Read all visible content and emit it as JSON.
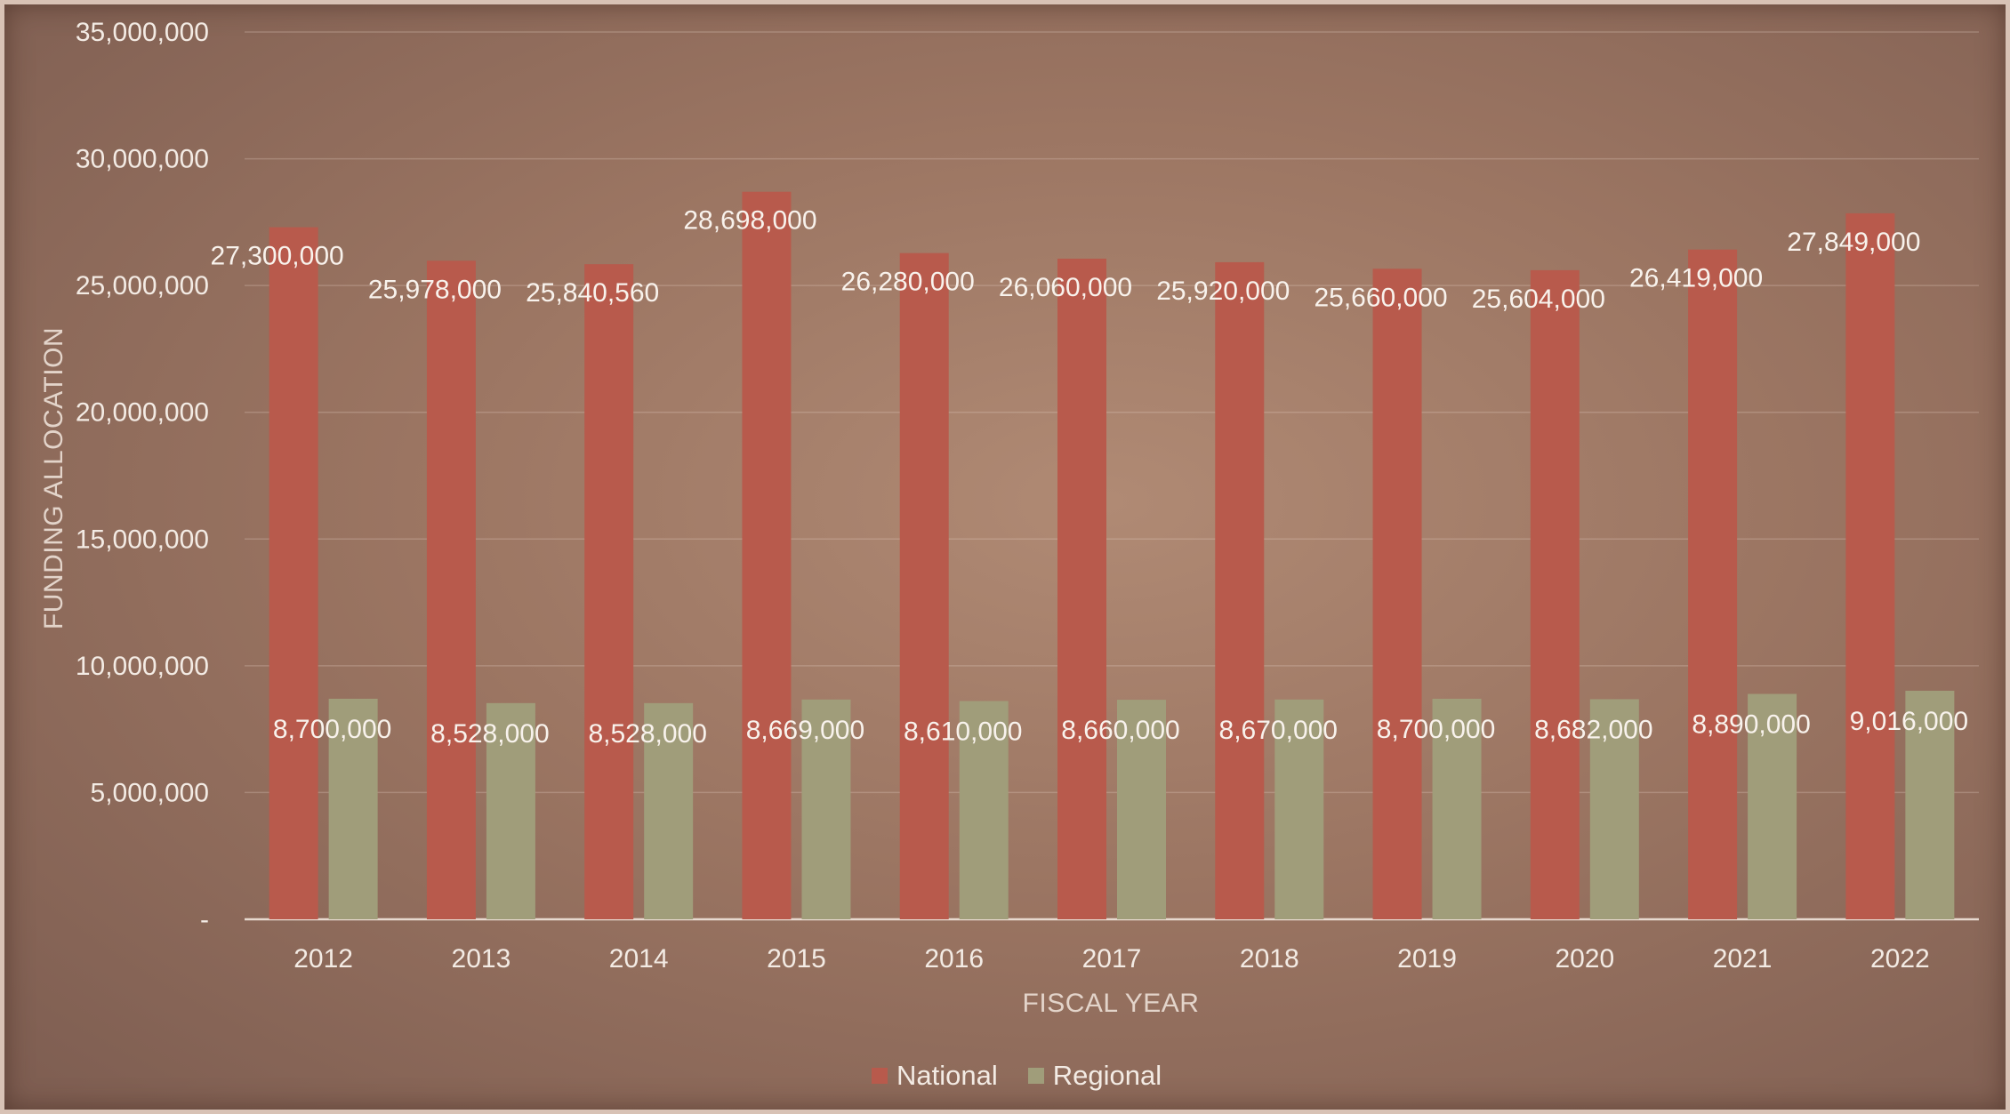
{
  "chart_data": {
    "type": "bar",
    "title": "",
    "xlabel": "FISCAL YEAR",
    "ylabel": "FUNDING ALLOCATION",
    "ylim": [
      0,
      35000000
    ],
    "yticks": [
      "-",
      "5,000,000",
      "10,000,000",
      "15,000,000",
      "20,000,000",
      "25,000,000",
      "30,000,000",
      "35,000,000"
    ],
    "grid": true,
    "legend_position": "bottom",
    "categories": [
      "2012",
      "2013",
      "2014",
      "2015",
      "2016",
      "2017",
      "2018",
      "2019",
      "2020",
      "2021",
      "2022"
    ],
    "series": [
      {
        "name": "National",
        "color": "#b85a4c",
        "values": [
          27300000,
          25978000,
          25840560,
          28698000,
          26280000,
          26060000,
          25920000,
          25660000,
          25604000,
          26419000,
          27849000
        ],
        "labels": [
          "27,300,000",
          "25,978,000",
          "25,840,560",
          "28,698,000",
          "26,280,000",
          "26,060,000",
          "25,920,000",
          "25,660,000",
          "25,604,000",
          "26,419,000",
          "27,849,000"
        ]
      },
      {
        "name": "Regional",
        "color": "#a09d7a",
        "values": [
          8700000,
          8528000,
          8528000,
          8669000,
          8610000,
          8660000,
          8670000,
          8700000,
          8682000,
          8890000,
          9016000
        ],
        "labels": [
          "8,700,000",
          "8,528,000",
          "8,528,000",
          "8,669,000",
          "8,610,000",
          "8,660,000",
          "8,670,000",
          "8,700,000",
          "8,682,000",
          "8,890,000",
          "9,016,000"
        ]
      }
    ]
  }
}
